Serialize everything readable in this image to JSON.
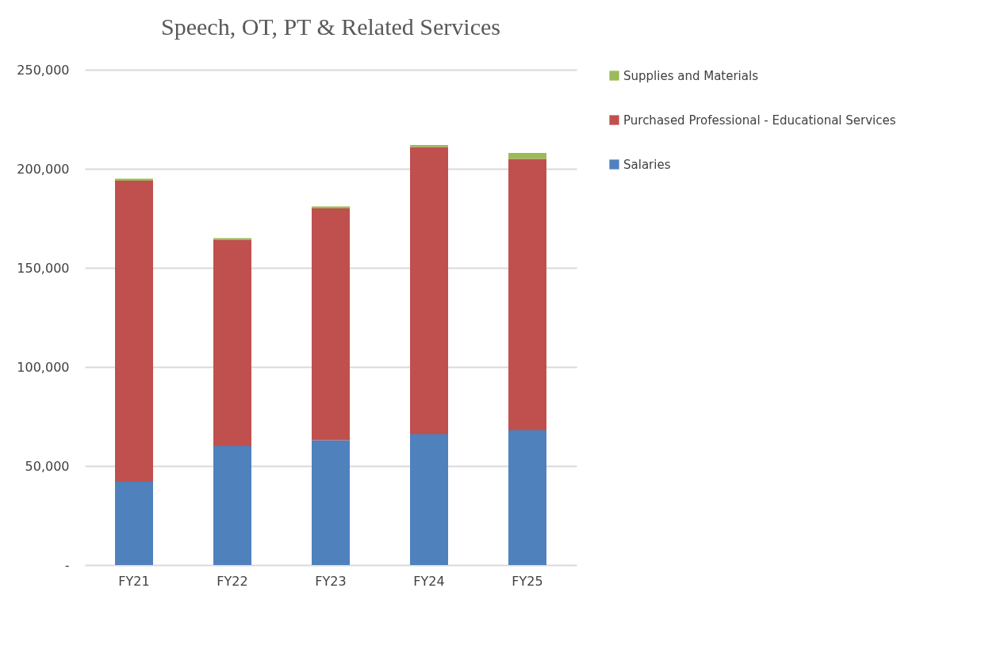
{
  "chart_data": {
    "type": "bar",
    "title": "Speech, OT, PT & Related Services",
    "categories": [
      "FY21",
      "FY22",
      "FY23",
      "FY24",
      "FY25"
    ],
    "stacked": true,
    "series": [
      {
        "name": "Salaries",
        "color": "#4f81bd",
        "values": [
          42000,
          60000,
          63000,
          66000,
          68000
        ]
      },
      {
        "name": "Purchased Professional - Educational Services",
        "color": "#c0504d",
        "values": [
          152000,
          104000,
          117000,
          145000,
          137000
        ]
      },
      {
        "name": "Supplies and Materials",
        "color": "#9bbb59",
        "values": [
          1000,
          1000,
          1000,
          1000,
          3000
        ]
      }
    ],
    "ylim": [
      0,
      250000
    ],
    "yticks": [
      {
        "value": 0,
        "label": "-"
      },
      {
        "value": 50000,
        "label": "50,000"
      },
      {
        "value": 100000,
        "label": "100,000"
      },
      {
        "value": 150000,
        "label": "150,000"
      },
      {
        "value": 200000,
        "label": "200,000"
      },
      {
        "value": 250000,
        "label": "250,000"
      }
    ],
    "grid": "y",
    "legend": "right"
  }
}
